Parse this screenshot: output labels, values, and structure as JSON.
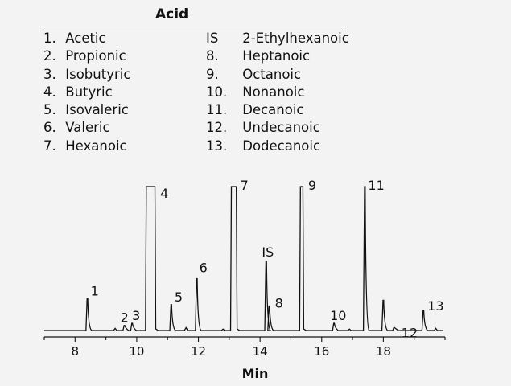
{
  "chart_data": {
    "type": "line",
    "title": "",
    "xlabel": "Min",
    "ylabel": "",
    "xlim": [
      7,
      20
    ],
    "ylim": [
      0,
      100
    ],
    "xticks": [
      8,
      10,
      12,
      14,
      16,
      18
    ],
    "grid": false,
    "legend": {
      "title": "Acid",
      "placement": "top",
      "entries": [
        {
          "id": "1.",
          "name": "Acetic"
        },
        {
          "id": "2.",
          "name": "Propionic"
        },
        {
          "id": "3.",
          "name": "Isobutyric"
        },
        {
          "id": "4.",
          "name": "Butyric"
        },
        {
          "id": "5.",
          "name": "Isovaleric"
        },
        {
          "id": "6.",
          "name": "Valeric"
        },
        {
          "id": "7.",
          "name": "Hexanoic"
        },
        {
          "id": "IS",
          "name": "2-Ethylhexanoic"
        },
        {
          "id": "8.",
          "name": "Heptanoic"
        },
        {
          "id": "9.",
          "name": "Octanoic"
        },
        {
          "id": "10.",
          "name": "Nonanoic"
        },
        {
          "id": "11.",
          "name": "Decanoic"
        },
        {
          "id": "12.",
          "name": "Undecanoic"
        },
        {
          "id": "13.",
          "name": "Dodecanoic"
        }
      ]
    },
    "peaks": [
      {
        "label": "1",
        "x": 8.4,
        "height": 22,
        "width": 0.06
      },
      {
        "label": "2",
        "x": 9.6,
        "height": 3.5,
        "width": 0.03
      },
      {
        "label": "3",
        "x": 9.85,
        "height": 5,
        "width": 0.03
      },
      {
        "label": "4",
        "x": 10.45,
        "height": 100,
        "width": 0.28,
        "flat": true
      },
      {
        "label": "5",
        "x": 11.12,
        "height": 18,
        "width": 0.04
      },
      {
        "label": "6",
        "x": 11.95,
        "height": 36,
        "width": 0.04
      },
      {
        "label": "7",
        "x": 13.15,
        "height": 100,
        "width": 0.16,
        "flat": true
      },
      {
        "label": "IS",
        "x": 14.2,
        "height": 48,
        "width": 0.04
      },
      {
        "label": "8",
        "x": 14.3,
        "height": 17,
        "width": 0.04
      },
      {
        "label": "9",
        "x": 15.35,
        "height": 100,
        "width": 0.08,
        "flat": true
      },
      {
        "label": "10",
        "x": 16.4,
        "height": 5,
        "width": 0.04
      },
      {
        "label": "11",
        "x": 17.4,
        "height": 100,
        "width": 0.05
      },
      {
        "label": "",
        "x": 18.0,
        "height": 21,
        "width": 0.04
      },
      {
        "label": "12",
        "x": 18.35,
        "height": 2,
        "width": 0.03
      },
      {
        "label": "13",
        "x": 19.3,
        "height": 14,
        "width": 0.04
      }
    ],
    "baseline_noise": [
      {
        "x": 9.3,
        "height": 1.5
      },
      {
        "x": 11.6,
        "height": 2
      },
      {
        "x": 12.8,
        "height": 1
      },
      {
        "x": 16.9,
        "height": 1
      },
      {
        "x": 19.7,
        "height": 1.5
      }
    ]
  }
}
